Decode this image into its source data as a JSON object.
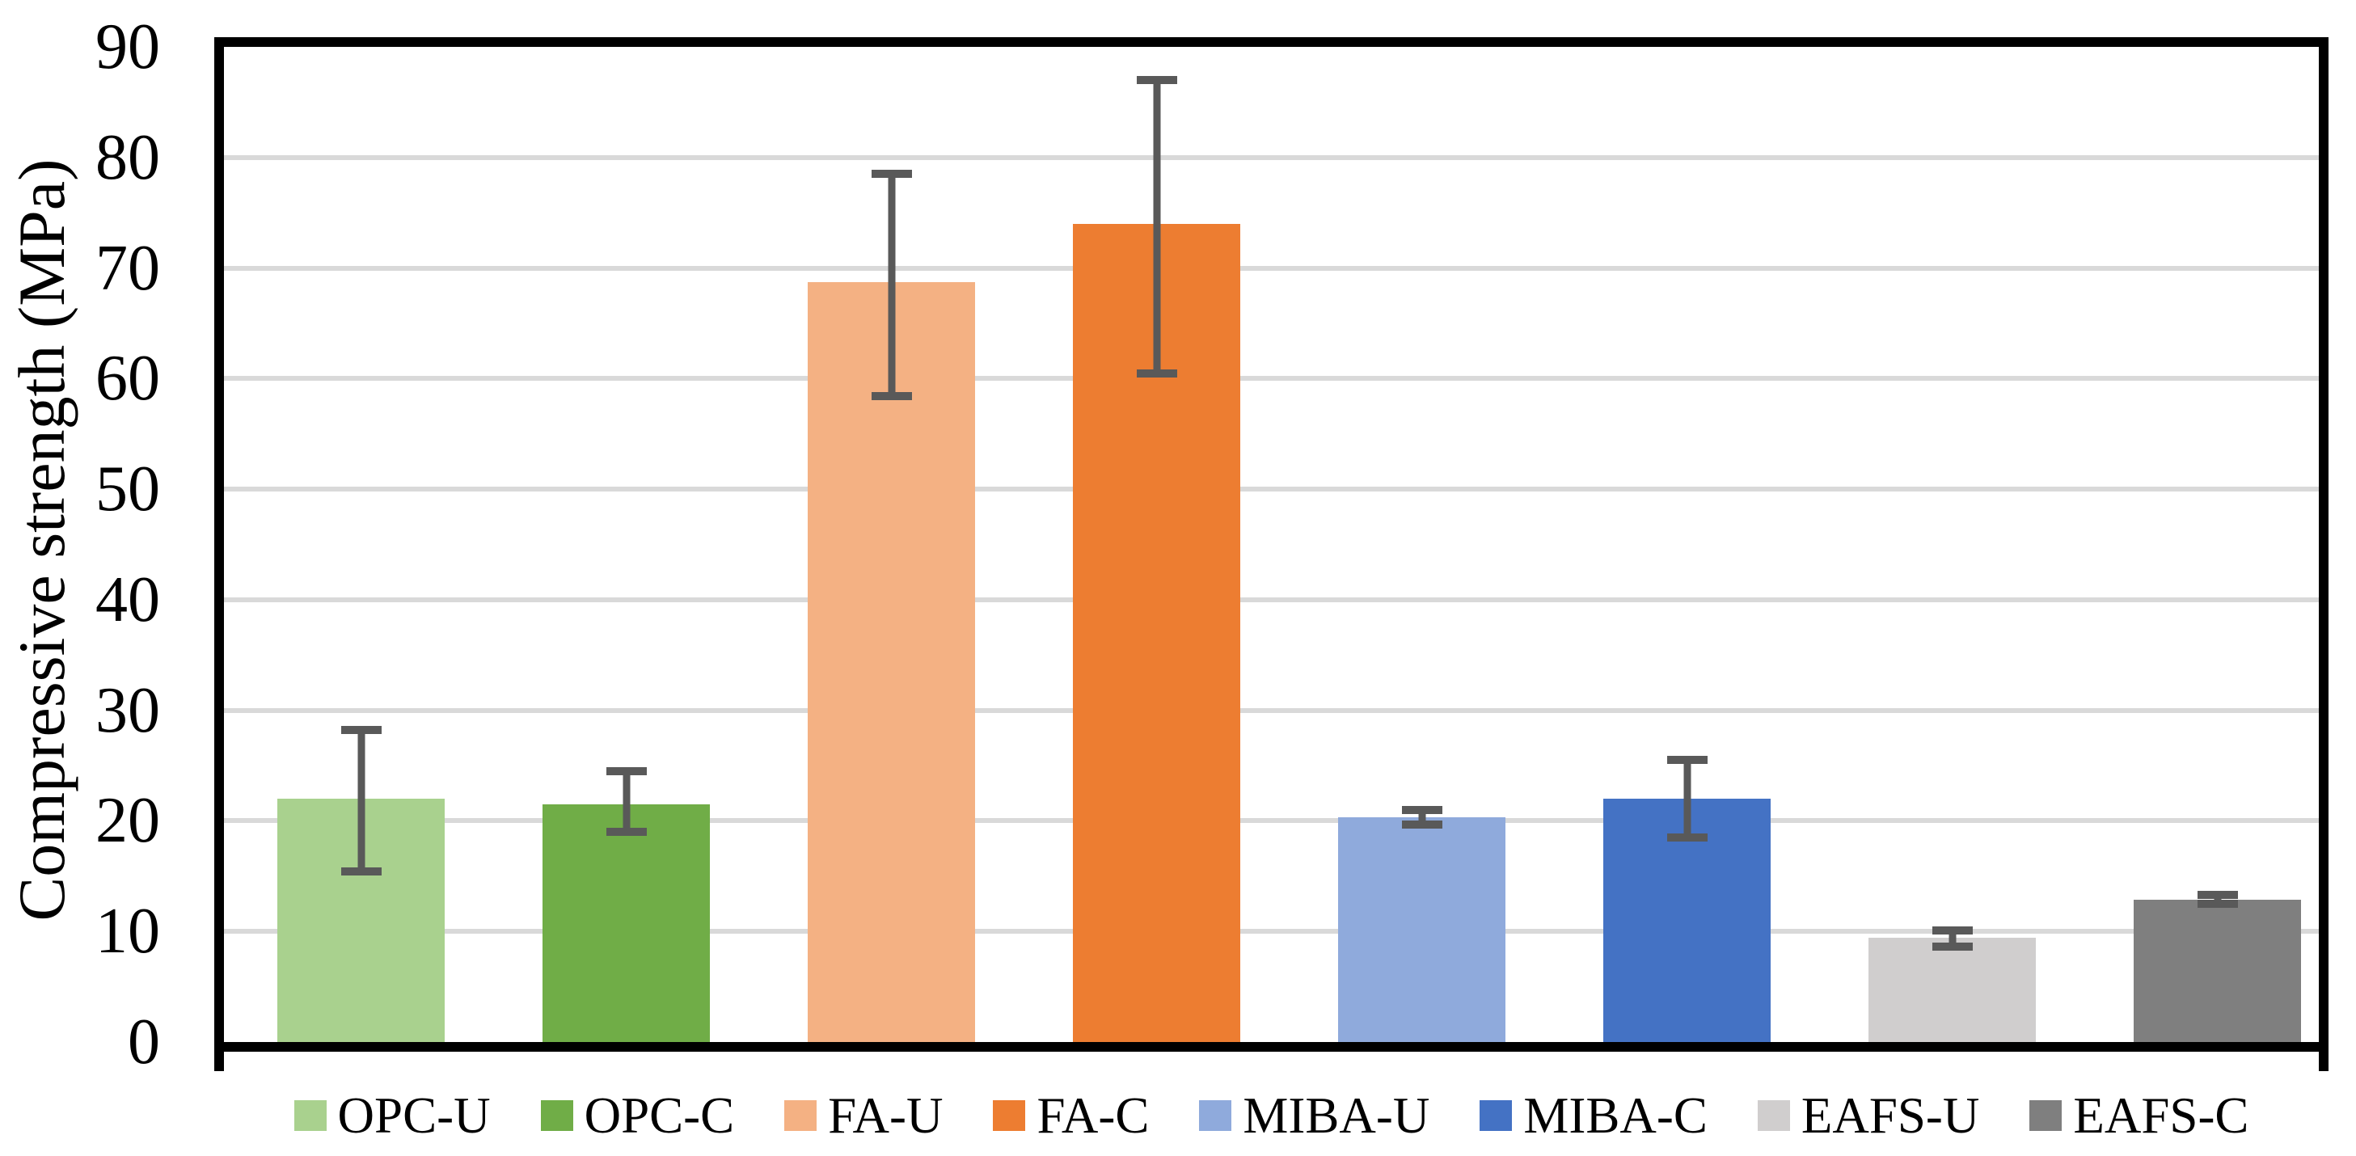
{
  "chart_data": {
    "type": "bar",
    "title": "",
    "xlabel": "",
    "ylabel": "Compressive strength (MPa)",
    "ylim": [
      0,
      90
    ],
    "ytick_step": 10,
    "ytick_labels": [
      "0",
      "10",
      "20",
      "30",
      "40",
      "50",
      "60",
      "70",
      "80",
      "90"
    ],
    "grid": true,
    "legend_position": "bottom",
    "series": [
      {
        "name": "OPC-U",
        "value": 22.0,
        "error_low": 15.4,
        "error_high": 28.2,
        "color": "#A9D18E"
      },
      {
        "name": "OPC-C",
        "value": 21.5,
        "error_low": 19.0,
        "error_high": 24.5,
        "color": "#70AD47"
      },
      {
        "name": "FA-U",
        "value": 68.7,
        "error_low": 58.4,
        "error_high": 78.5,
        "color": "#F4B183"
      },
      {
        "name": "FA-C",
        "value": 74.0,
        "error_low": 60.5,
        "error_high": 87.0,
        "color": "#ED7D31"
      },
      {
        "name": "MIBA-U",
        "value": 20.3,
        "error_low": 19.7,
        "error_high": 21.0,
        "color": "#8FAADC"
      },
      {
        "name": "MIBA-C",
        "value": 22.0,
        "error_low": 18.5,
        "error_high": 25.5,
        "color": "#4472C4"
      },
      {
        "name": "EAFS-U",
        "value": 9.4,
        "error_low": 8.6,
        "error_high": 10.1,
        "color": "#D0CECE"
      },
      {
        "name": "EAFS-C",
        "value": 12.9,
        "error_low": 12.5,
        "error_high": 13.3,
        "color": "#7F7F7F"
      }
    ],
    "colors": {
      "gridline": "#D9D9D9",
      "error_bar": "#595959",
      "axis": "#000000",
      "background": "#FFFFFF"
    }
  }
}
